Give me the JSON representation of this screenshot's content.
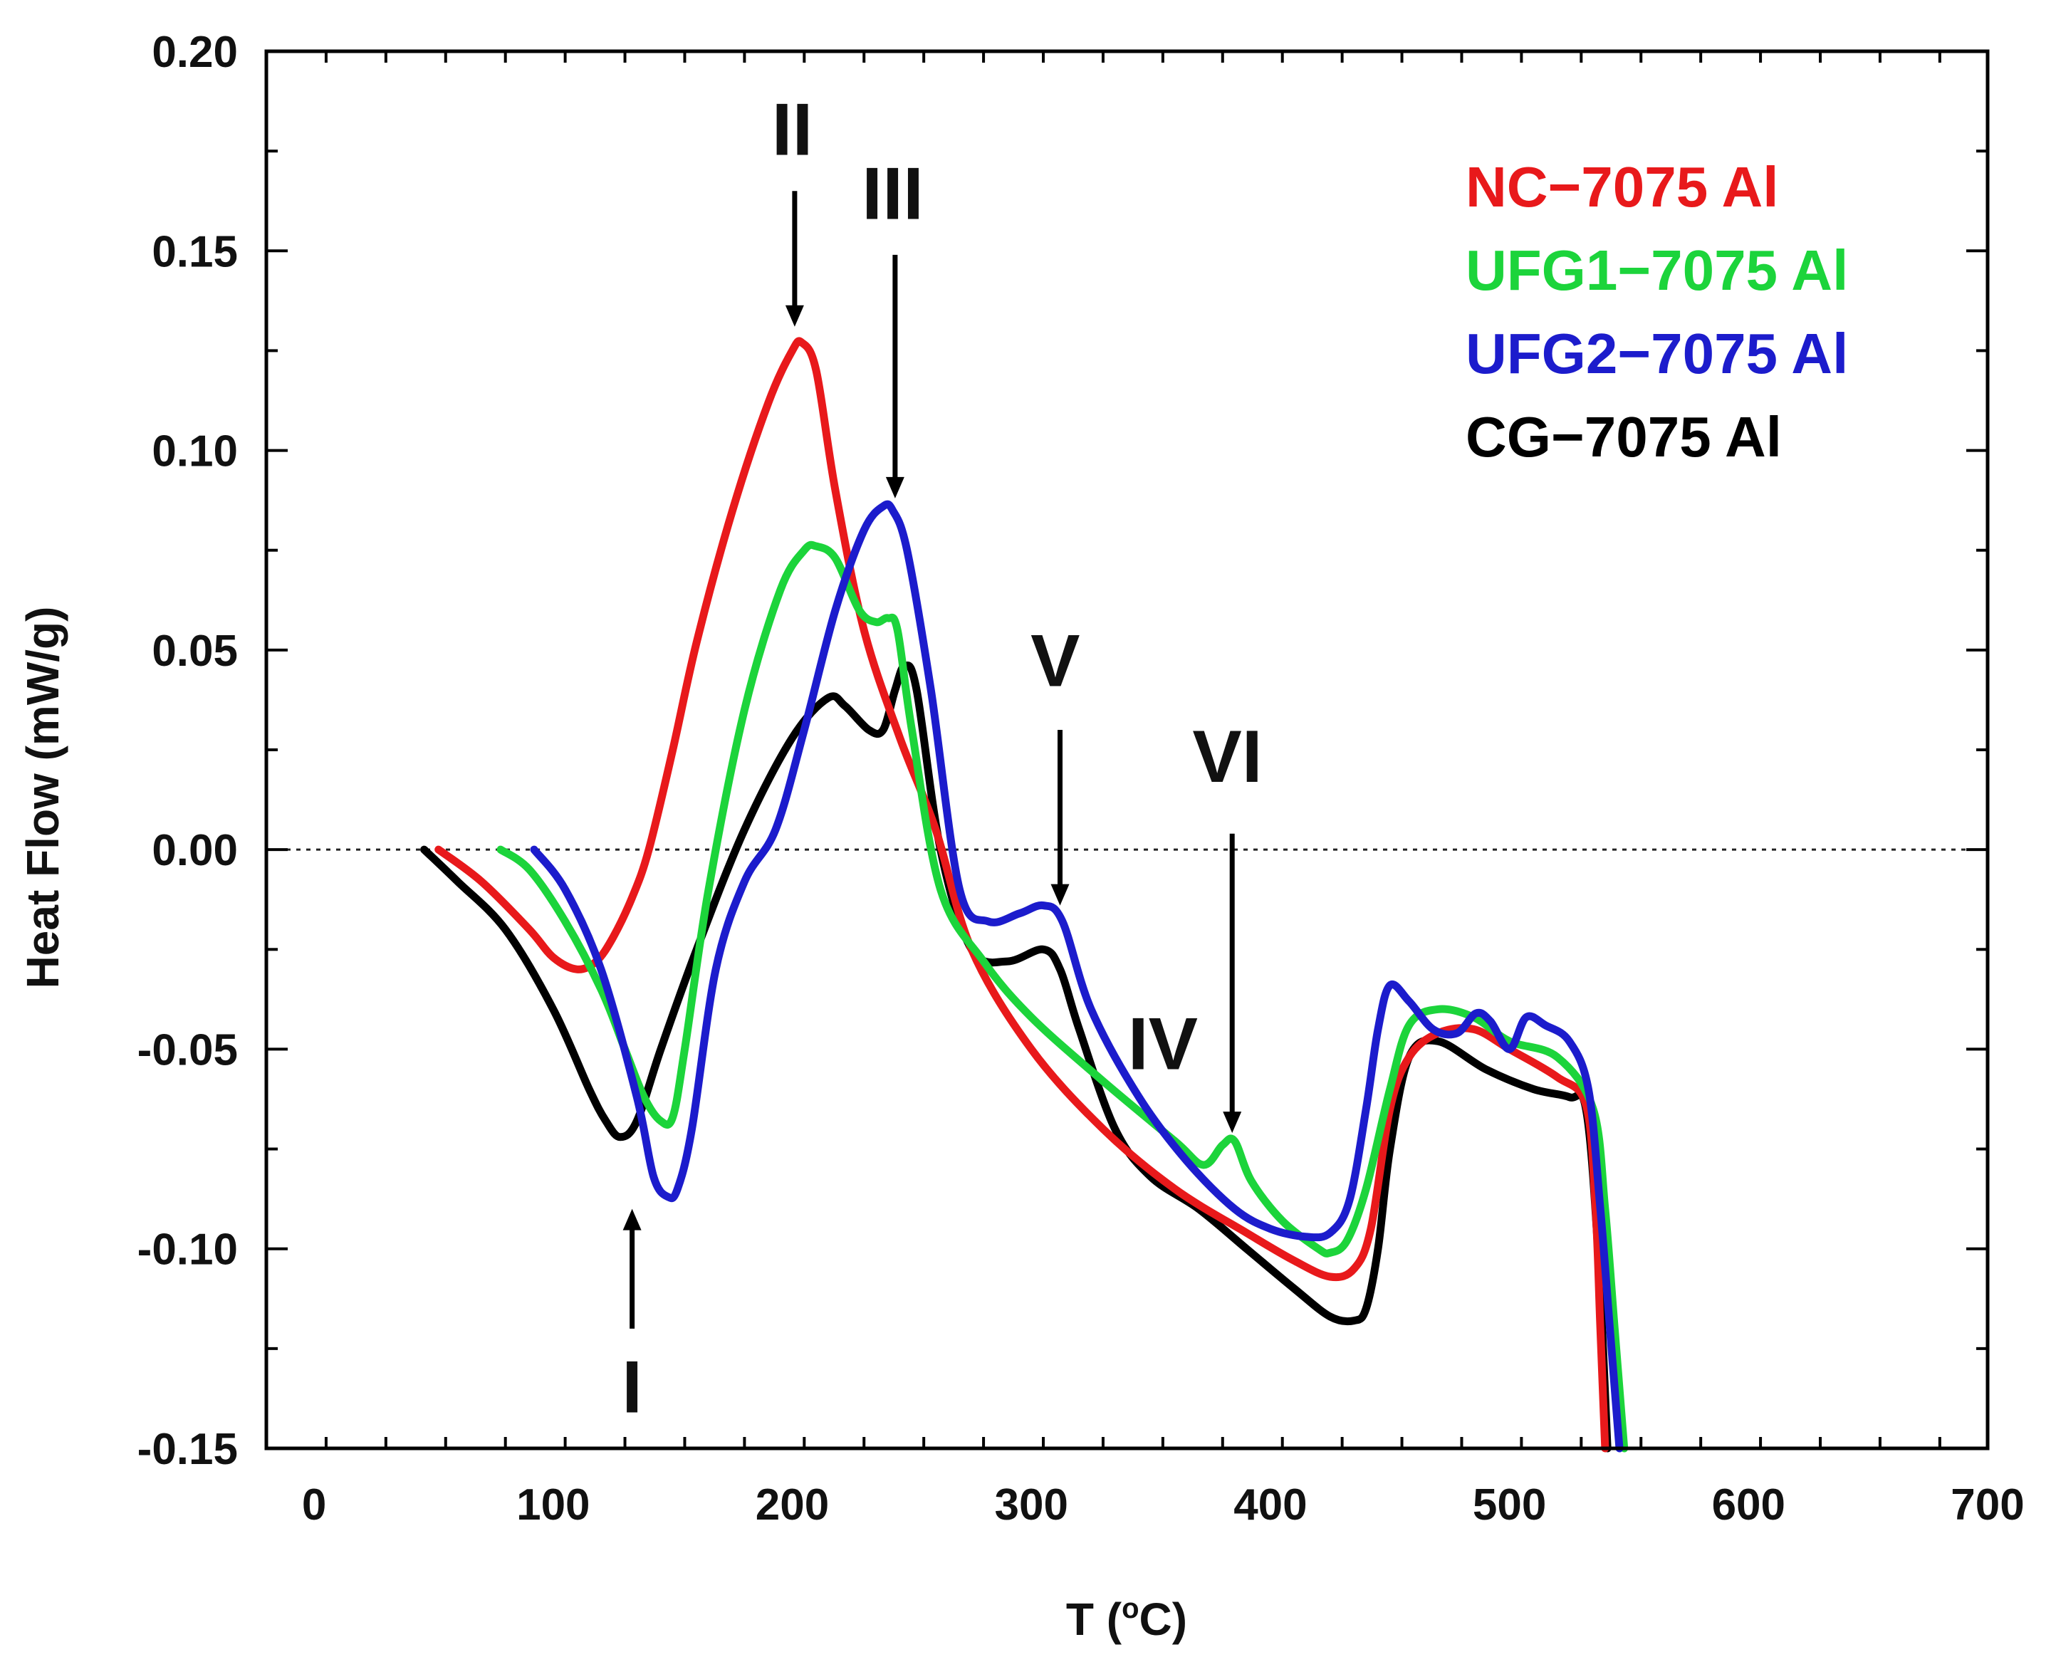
{
  "chart_data": {
    "type": "line",
    "title": "",
    "xlabel": "T (°C)",
    "xlabel_parts": [
      "T (",
      "o",
      "C)"
    ],
    "ylabel": "Heat Flow (mW/g)",
    "xlim": [
      -20,
      700
    ],
    "ylim": [
      -0.15,
      0.2
    ],
    "xticks": [
      0,
      100,
      200,
      300,
      400,
      500,
      600,
      700
    ],
    "xtick_labels": [
      "0",
      "100",
      "200",
      "300",
      "400",
      "500",
      "600",
      "700"
    ],
    "yticks": [
      -0.15,
      -0.1,
      -0.05,
      0.0,
      0.05,
      0.1,
      0.15,
      0.2
    ],
    "ytick_labels": [
      "-0.15",
      "-0.10",
      "-0.05",
      "0.00",
      "0.05",
      "0.10",
      "0.15",
      "0.20"
    ],
    "reference_line": {
      "y": 0,
      "style": "dotted"
    },
    "series": [
      {
        "name": "NC−7075 Al",
        "color": "#e8191b",
        "x": [
          52,
          70,
          90,
          100,
          110,
          118,
          125,
          133,
          140,
          150,
          160,
          175,
          190,
          200,
          204,
          210,
          218,
          230,
          245,
          260,
          275,
          300,
          330,
          360,
          390,
          410,
          425,
          435,
          442,
          450,
          458,
          470,
          485,
          500,
          520,
          532,
          536,
          538,
          540
        ],
        "y": [
          0.0,
          -0.008,
          -0.02,
          -0.027,
          -0.03,
          -0.028,
          -0.022,
          -0.012,
          0.0,
          0.025,
          0.052,
          0.085,
          0.112,
          0.125,
          0.127,
          0.12,
          0.09,
          0.055,
          0.028,
          0.005,
          -0.025,
          -0.05,
          -0.07,
          -0.085,
          -0.096,
          -0.103,
          -0.107,
          -0.105,
          -0.095,
          -0.065,
          -0.052,
          -0.046,
          -0.045,
          -0.05,
          -0.057,
          -0.064,
          -0.09,
          -0.12,
          -0.15
        ]
      },
      {
        "name": "UFG1−7075 Al",
        "color": "#1cd43b",
        "x": [
          78,
          90,
          105,
          120,
          130,
          138,
          145,
          150,
          155,
          165,
          180,
          195,
          205,
          210,
          218,
          228,
          235,
          240,
          244,
          250,
          262,
          280,
          300,
          330,
          360,
          372,
          380,
          385,
          392,
          405,
          420,
          425,
          432,
          440,
          450,
          458,
          470,
          485,
          500,
          520,
          535,
          540,
          544,
          548
        ],
        "y": [
          0.0,
          -0.005,
          -0.018,
          -0.035,
          -0.05,
          -0.062,
          -0.068,
          -0.067,
          -0.05,
          -0.01,
          0.035,
          0.065,
          0.075,
          0.076,
          0.073,
          0.06,
          0.057,
          0.058,
          0.055,
          0.03,
          -0.01,
          -0.028,
          -0.042,
          -0.058,
          -0.073,
          -0.079,
          -0.074,
          -0.073,
          -0.083,
          -0.093,
          -0.1,
          -0.101,
          -0.098,
          -0.085,
          -0.06,
          -0.044,
          -0.04,
          -0.042,
          -0.048,
          -0.052,
          -0.065,
          -0.09,
          -0.12,
          -0.15
        ]
      },
      {
        "name": "UFG2−7075 Al",
        "color": "#1c1ccc",
        "x": [
          92,
          105,
          120,
          135,
          142,
          148,
          152,
          158,
          168,
          180,
          193,
          205,
          218,
          230,
          238,
          242,
          248,
          258,
          270,
          282,
          295,
          305,
          313,
          325,
          345,
          365,
          385,
          400,
          415,
          425,
          433,
          440,
          445,
          450,
          458,
          468,
          478,
          486,
          492,
          500,
          507,
          515,
          525,
          533,
          538,
          542,
          546
        ],
        "y": [
          0.0,
          -0.01,
          -0.03,
          -0.062,
          -0.082,
          -0.087,
          -0.085,
          -0.07,
          -0.03,
          -0.008,
          0.005,
          0.03,
          0.06,
          0.08,
          0.086,
          0.085,
          0.075,
          0.04,
          -0.01,
          -0.018,
          -0.016,
          -0.014,
          -0.018,
          -0.04,
          -0.062,
          -0.078,
          -0.09,
          -0.095,
          -0.097,
          -0.096,
          -0.088,
          -0.065,
          -0.045,
          -0.034,
          -0.038,
          -0.045,
          -0.046,
          -0.041,
          -0.043,
          -0.05,
          -0.042,
          -0.044,
          -0.048,
          -0.06,
          -0.09,
          -0.12,
          -0.15
        ]
      },
      {
        "name": "CG−7075 Al",
        "color": "#000000",
        "x": [
          46,
          60,
          80,
          100,
          115,
          122,
          128,
          135,
          145,
          160,
          180,
          200,
          215,
          222,
          232,
          238,
          243,
          247,
          252,
          262,
          275,
          290,
          305,
          312,
          320,
          335,
          350,
          370,
          390,
          410,
          425,
          435,
          440,
          445,
          450,
          458,
          470,
          490,
          510,
          525,
          532,
          537,
          541
        ],
        "y": [
          0.0,
          -0.008,
          -0.02,
          -0.04,
          -0.06,
          -0.068,
          -0.072,
          -0.068,
          -0.05,
          -0.025,
          0.005,
          0.028,
          0.038,
          0.036,
          0.03,
          0.03,
          0.04,
          0.046,
          0.04,
          0.0,
          -0.025,
          -0.028,
          -0.025,
          -0.03,
          -0.045,
          -0.07,
          -0.082,
          -0.09,
          -0.1,
          -0.11,
          -0.117,
          -0.118,
          -0.115,
          -0.1,
          -0.075,
          -0.052,
          -0.048,
          -0.055,
          -0.06,
          -0.062,
          -0.065,
          -0.1,
          -0.15
        ]
      }
    ],
    "annotations": [
      {
        "label": "I",
        "text_x": 133,
        "text_y": -0.141,
        "arrow_from": [
          133,
          -0.12
        ],
        "arrow_to": [
          133,
          -0.09
        ],
        "direction": "up"
      },
      {
        "label": "II",
        "text_x": 200,
        "text_y": 0.174,
        "arrow_from": [
          201,
          0.165
        ],
        "arrow_to": [
          201,
          0.131
        ],
        "direction": "down"
      },
      {
        "label": "III",
        "text_x": 242,
        "text_y": 0.158,
        "arrow_from": [
          243,
          0.149
        ],
        "arrow_to": [
          243,
          0.088
        ],
        "direction": "down"
      },
      {
        "label": "IV",
        "text_x": 355,
        "text_y": -0.055,
        "arrow_from": null,
        "arrow_to": null,
        "direction": "none"
      },
      {
        "label": "V",
        "text_x": 310,
        "text_y": 0.041,
        "arrow_from": [
          312,
          0.03
        ],
        "arrow_to": [
          312,
          -0.014
        ],
        "direction": "down"
      },
      {
        "label": "VI",
        "text_x": 382,
        "text_y": 0.017,
        "arrow_from": [
          384,
          0.004
        ],
        "arrow_to": [
          384,
          -0.071
        ],
        "direction": "down"
      }
    ],
    "legend": {
      "placement": "top-right",
      "frame": false
    }
  }
}
